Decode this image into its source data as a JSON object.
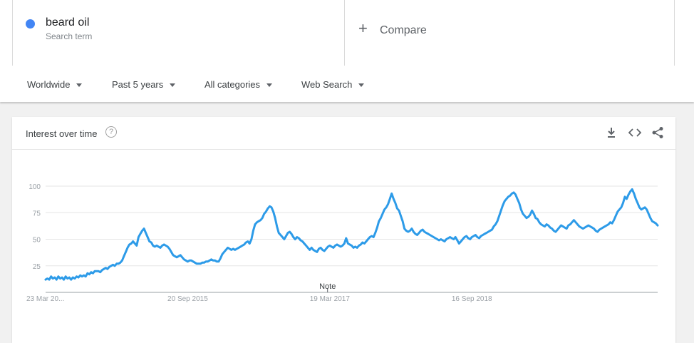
{
  "term": {
    "name": "beard oil",
    "subtitle": "Search term",
    "color": "#4285f4"
  },
  "compare": {
    "label": "Compare",
    "plus": "+"
  },
  "filters": [
    {
      "label": "Worldwide"
    },
    {
      "label": "Past 5 years"
    },
    {
      "label": "All categories"
    },
    {
      "label": "Web Search"
    }
  ],
  "card": {
    "title": "Interest over time",
    "help": "?",
    "note": "Note"
  },
  "chart_data": {
    "type": "line",
    "title": "Interest over time",
    "series": [
      {
        "name": "beard oil",
        "color": "#2d9be8"
      }
    ],
    "ylim": [
      0,
      100
    ],
    "yticks": [
      "25",
      "50",
      "75",
      "100"
    ],
    "xtick_labels": [
      "23 Mar 20...",
      "20 Sep 2015",
      "19 Mar 2017",
      "16 Sep 2018"
    ],
    "xtick_index": [
      0,
      78,
      156,
      234
    ],
    "grid": true,
    "values": [
      12,
      13,
      12,
      15,
      13,
      14,
      12,
      15,
      13,
      14,
      12,
      15,
      13,
      14,
      12,
      14,
      13,
      15,
      14,
      16,
      15,
      16,
      15,
      18,
      17,
      19,
      18,
      20,
      20,
      20,
      19,
      21,
      22,
      23,
      22,
      24,
      25,
      26,
      25,
      27,
      27,
      28,
      30,
      34,
      38,
      42,
      45,
      46,
      48,
      46,
      44,
      52,
      55,
      58,
      60,
      56,
      52,
      48,
      47,
      44,
      43,
      44,
      43,
      42,
      44,
      45,
      44,
      43,
      41,
      38,
      35,
      34,
      33,
      34,
      35,
      33,
      31,
      30,
      29,
      30,
      30,
      29,
      28,
      27,
      27,
      27,
      28,
      28,
      29,
      29,
      30,
      31,
      30,
      30,
      29,
      29,
      32,
      36,
      38,
      40,
      42,
      41,
      40,
      41,
      40,
      41,
      42,
      43,
      44,
      45,
      47,
      48,
      46,
      50,
      58,
      64,
      66,
      67,
      68,
      70,
      74,
      76,
      79,
      81,
      80,
      76,
      70,
      62,
      56,
      54,
      52,
      50,
      53,
      56,
      57,
      55,
      52,
      50,
      52,
      51,
      49,
      48,
      46,
      44,
      42,
      40,
      42,
      40,
      39,
      38,
      41,
      42,
      40,
      39,
      41,
      43,
      44,
      43,
      42,
      44,
      45,
      44,
      43,
      44,
      46,
      51,
      46,
      45,
      44,
      42,
      43,
      42,
      44,
      45,
      47,
      46,
      48,
      50,
      52,
      53,
      52,
      56,
      61,
      67,
      70,
      74,
      78,
      80,
      83,
      88,
      93,
      88,
      84,
      79,
      77,
      72,
      67,
      60,
      58,
      57,
      58,
      60,
      57,
      55,
      54,
      56,
      58,
      59,
      57,
      56,
      55,
      54,
      53,
      52,
      51,
      50,
      49,
      50,
      49,
      48,
      50,
      51,
      52,
      51,
      50,
      52,
      49,
      46,
      48,
      50,
      52,
      53,
      51,
      50,
      52,
      53,
      54,
      52,
      51,
      53,
      54,
      55,
      56,
      57,
      58,
      59,
      62,
      64,
      67,
      72,
      77,
      82,
      86,
      88,
      90,
      91,
      93,
      94,
      92,
      88,
      84,
      78,
      74,
      72,
      70,
      71,
      73,
      77,
      74,
      70,
      69,
      66,
      64,
      63,
      62,
      64,
      63,
      61,
      60,
      58,
      57,
      59,
      61,
      63,
      62,
      61,
      60,
      63,
      64,
      66,
      68,
      66,
      64,
      62,
      61,
      60,
      61,
      62,
      63,
      62,
      61,
      60,
      58,
      57,
      59,
      60,
      61,
      62,
      63,
      64,
      66,
      65,
      68,
      72,
      76,
      78,
      80,
      84,
      90,
      88,
      92,
      95,
      97,
      93,
      88,
      84,
      80,
      78,
      79,
      80,
      78,
      74,
      70,
      67,
      66,
      65,
      63
    ],
    "note_index": 154
  }
}
